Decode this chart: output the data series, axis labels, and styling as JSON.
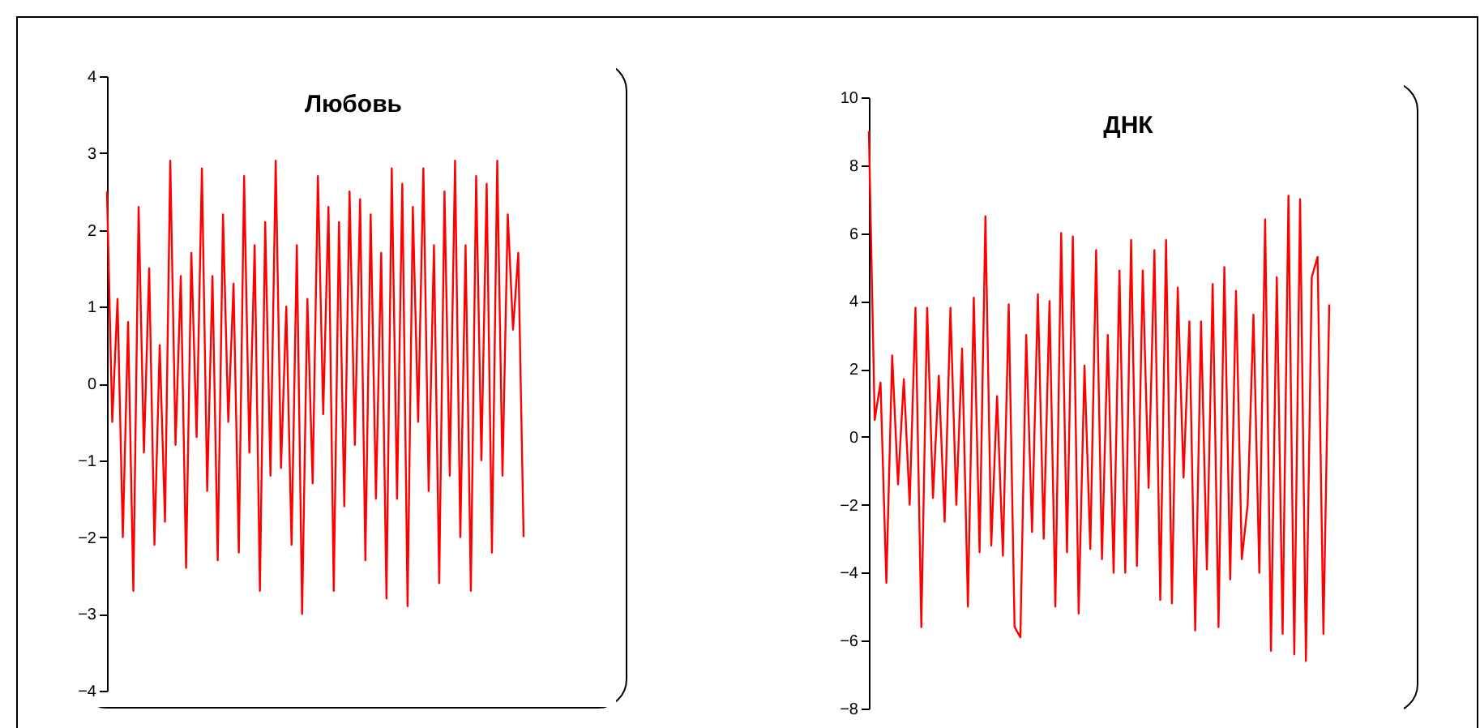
{
  "chart_data": [
    {
      "type": "line",
      "title": "Любовь",
      "tick_labels": "y",
      "grid": false,
      "ylim": [
        -4,
        4
      ],
      "yticks": [
        -4,
        -3,
        -2,
        -1,
        0,
        1,
        2,
        3,
        4
      ],
      "categories": [
        null,
        null,
        null,
        null,
        null,
        null,
        null,
        null,
        null,
        null,
        null,
        null,
        null,
        null,
        null,
        null,
        null,
        null,
        null,
        null,
        null,
        null,
        null,
        null,
        null,
        null,
        null,
        null,
        null,
        null,
        null,
        null,
        null,
        null,
        null,
        null,
        null,
        null,
        null,
        null,
        null,
        null,
        null,
        null,
        null,
        null,
        null,
        null,
        null,
        null,
        null,
        null,
        null,
        null,
        null,
        null,
        null,
        null,
        null,
        null,
        null,
        null,
        null,
        null,
        null,
        null,
        null,
        null,
        null,
        null,
        null,
        null,
        null,
        null,
        null,
        null,
        null,
        null,
        null,
        null
      ],
      "series": [
        {
          "color": "#ff0000",
          "values": [
            2.5,
            -0.5,
            1.1,
            -2.0,
            0.8,
            -2.7,
            2.3,
            -0.9,
            1.5,
            -2.1,
            0.5,
            -1.8,
            2.9,
            -0.8,
            1.4,
            -2.4,
            1.7,
            -0.7,
            2.8,
            -1.4,
            1.4,
            -2.3,
            2.2,
            -0.5,
            1.3,
            -2.2,
            2.7,
            -0.9,
            1.8,
            -2.7,
            2.1,
            -1.2,
            2.9,
            -1.1,
            1.0,
            -2.1,
            1.8,
            -3.0,
            1.1,
            -1.3,
            2.7,
            -0.4,
            2.3,
            -2.7,
            2.1,
            -1.6,
            2.5,
            -0.8,
            2.4,
            -2.3,
            2.2,
            -1.5,
            1.7,
            -2.8,
            2.8,
            -1.5,
            2.6,
            -2.9,
            2.3,
            -0.5,
            2.8,
            -1.4,
            1.8,
            -2.6,
            2.5,
            -1.2,
            2.9,
            -2.0,
            1.8,
            -2.7,
            2.7,
            -1.0,
            2.6,
            -2.2,
            2.9,
            -1.2,
            2.2,
            0.7,
            1.7,
            -2.0
          ]
        }
      ]
    },
    {
      "type": "line",
      "title": "ДНК",
      "tick_labels": "y",
      "grid": false,
      "ylim": [
        -8,
        10
      ],
      "yticks": [
        -8,
        -6,
        -4,
        -2,
        0,
        2,
        4,
        6,
        8,
        10
      ],
      "categories": [
        null,
        null,
        null,
        null,
        null,
        null,
        null,
        null,
        null,
        null,
        null,
        null,
        null,
        null,
        null,
        null,
        null,
        null,
        null,
        null,
        null,
        null,
        null,
        null,
        null,
        null,
        null,
        null,
        null,
        null,
        null,
        null,
        null,
        null,
        null,
        null,
        null,
        null,
        null,
        null,
        null,
        null,
        null,
        null,
        null,
        null,
        null,
        null,
        null,
        null,
        null,
        null,
        null,
        null,
        null,
        null,
        null,
        null,
        null,
        null,
        null,
        null,
        null,
        null,
        null,
        null,
        null,
        null,
        null,
        null,
        null,
        null,
        null,
        null,
        null,
        null,
        null,
        null,
        null,
        null
      ],
      "series": [
        {
          "color": "#ff0000",
          "values": [
            9.0,
            0.5,
            1.6,
            -4.3,
            2.4,
            -1.4,
            1.7,
            -2.0,
            3.8,
            -5.6,
            3.8,
            -1.8,
            1.8,
            -2.5,
            3.8,
            -2.0,
            2.6,
            -5.0,
            4.1,
            -3.4,
            6.5,
            -3.2,
            1.2,
            -3.5,
            3.9,
            -5.6,
            -5.9,
            3.0,
            -2.8,
            4.2,
            -3.0,
            4.0,
            -5.0,
            6.0,
            -3.4,
            5.9,
            -5.2,
            2.1,
            -3.3,
            5.5,
            -3.6,
            3.0,
            -4.0,
            4.9,
            -4.0,
            5.8,
            -3.8,
            4.9,
            -1.5,
            5.5,
            -4.8,
            5.8,
            -4.9,
            4.4,
            -1.2,
            3.4,
            -5.7,
            3.4,
            -3.9,
            4.5,
            -5.6,
            5.0,
            -4.2,
            4.3,
            -3.6,
            -2.0,
            3.6,
            -4.0,
            6.4,
            -6.3,
            4.7,
            -5.8,
            7.1,
            -6.4,
            7.0,
            -6.6,
            4.7,
            5.3,
            -5.8,
            3.9
          ]
        }
      ]
    }
  ]
}
